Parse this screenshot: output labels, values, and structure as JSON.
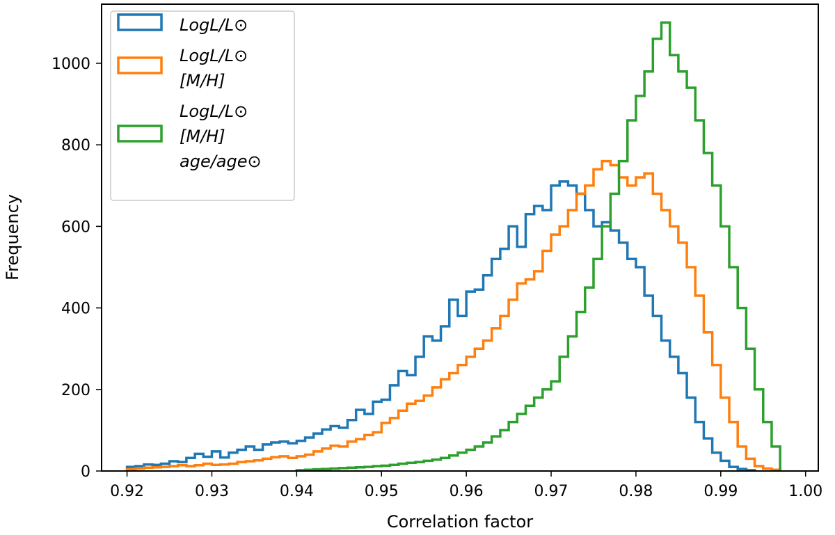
{
  "chart_data": {
    "type": "histogram",
    "xlabel": "Correlation factor",
    "ylabel": "Frequency",
    "xlim": [
      0.917,
      1.0015
    ],
    "ylim": [
      0,
      1145
    ],
    "x_ticks": [
      "0.92",
      "0.93",
      "0.94",
      "0.95",
      "0.96",
      "0.97",
      "0.98",
      "0.99",
      "1.00"
    ],
    "y_ticks": [
      "0",
      "200",
      "400",
      "600",
      "800",
      "1000"
    ],
    "legend_position": "upper-left",
    "series": [
      {
        "name_lines": [
          "LogL/L⊙"
        ],
        "color": "#1f77b4",
        "bin_edges": [
          0.92,
          0.921,
          0.922,
          0.923,
          0.924,
          0.925,
          0.926,
          0.927,
          0.928,
          0.929,
          0.93,
          0.931,
          0.932,
          0.933,
          0.934,
          0.935,
          0.936,
          0.937,
          0.938,
          0.939,
          0.94,
          0.941,
          0.942,
          0.943,
          0.944,
          0.945,
          0.946,
          0.947,
          0.948,
          0.949,
          0.95,
          0.951,
          0.952,
          0.953,
          0.954,
          0.955,
          0.956,
          0.957,
          0.958,
          0.959,
          0.96,
          0.961,
          0.962,
          0.963,
          0.964,
          0.965,
          0.966,
          0.967,
          0.968,
          0.969,
          0.97,
          0.971,
          0.972,
          0.973,
          0.974,
          0.975,
          0.976,
          0.977,
          0.978,
          0.979,
          0.98,
          0.981,
          0.982,
          0.983,
          0.984,
          0.985,
          0.986,
          0.987,
          0.988,
          0.989,
          0.99,
          0.991,
          0.992,
          0.993,
          0.994
        ],
        "counts": [
          10,
          12,
          16,
          15,
          18,
          24,
          22,
          32,
          42,
          35,
          48,
          33,
          45,
          52,
          60,
          52,
          65,
          70,
          72,
          68,
          74,
          82,
          92,
          102,
          110,
          106,
          125,
          150,
          140,
          170,
          175,
          210,
          245,
          235,
          280,
          330,
          320,
          355,
          420,
          380,
          440,
          445,
          480,
          520,
          545,
          600,
          550,
          630,
          650,
          640,
          700,
          710,
          700,
          680,
          640,
          600,
          610,
          590,
          560,
          520,
          500,
          430,
          380,
          320,
          280,
          240,
          180,
          120,
          80,
          45,
          25,
          10,
          5,
          2
        ]
      },
      {
        "name_lines": [
          "LogL/L⊙",
          "[M/H]"
        ],
        "color": "#ff7f0e",
        "bin_edges": [
          0.92,
          0.921,
          0.922,
          0.923,
          0.924,
          0.925,
          0.926,
          0.927,
          0.928,
          0.929,
          0.93,
          0.931,
          0.932,
          0.933,
          0.934,
          0.935,
          0.936,
          0.937,
          0.938,
          0.939,
          0.94,
          0.941,
          0.942,
          0.943,
          0.944,
          0.945,
          0.946,
          0.947,
          0.948,
          0.949,
          0.95,
          0.951,
          0.952,
          0.953,
          0.954,
          0.955,
          0.956,
          0.957,
          0.958,
          0.959,
          0.96,
          0.961,
          0.962,
          0.963,
          0.964,
          0.965,
          0.966,
          0.967,
          0.968,
          0.969,
          0.97,
          0.971,
          0.972,
          0.973,
          0.974,
          0.975,
          0.976,
          0.977,
          0.978,
          0.979,
          0.98,
          0.981,
          0.982,
          0.983,
          0.984,
          0.985,
          0.986,
          0.987,
          0.988,
          0.989,
          0.99,
          0.991,
          0.992,
          0.993,
          0.994,
          0.995,
          0.996,
          0.997
        ],
        "counts": [
          4,
          6,
          8,
          9,
          10,
          12,
          14,
          12,
          14,
          18,
          15,
          16,
          18,
          22,
          24,
          26,
          30,
          34,
          36,
          32,
          36,
          40,
          48,
          55,
          62,
          60,
          72,
          78,
          88,
          95,
          118,
          130,
          148,
          165,
          172,
          185,
          205,
          225,
          240,
          260,
          280,
          300,
          320,
          350,
          380,
          420,
          460,
          470,
          490,
          540,
          580,
          600,
          640,
          680,
          700,
          740,
          760,
          750,
          720,
          700,
          720,
          730,
          680,
          640,
          600,
          560,
          500,
          430,
          340,
          260,
          180,
          120,
          60,
          30,
          12,
          6,
          3
        ]
      },
      {
        "name_lines": [
          "LogL/L⊙",
          "[M/H]",
          "age/age⊙"
        ],
        "color": "#2ca02c",
        "bin_edges": [
          0.94,
          0.941,
          0.942,
          0.943,
          0.944,
          0.945,
          0.946,
          0.947,
          0.948,
          0.949,
          0.95,
          0.951,
          0.952,
          0.953,
          0.954,
          0.955,
          0.956,
          0.957,
          0.958,
          0.959,
          0.96,
          0.961,
          0.962,
          0.963,
          0.964,
          0.965,
          0.966,
          0.967,
          0.968,
          0.969,
          0.97,
          0.971,
          0.972,
          0.973,
          0.974,
          0.975,
          0.976,
          0.977,
          0.978,
          0.979,
          0.98,
          0.981,
          0.982,
          0.983,
          0.984,
          0.985,
          0.986,
          0.987,
          0.988,
          0.989,
          0.99,
          0.991,
          0.992,
          0.993,
          0.994,
          0.995,
          0.996,
          0.997
        ],
        "counts": [
          2,
          3,
          4,
          5,
          6,
          7,
          8,
          9,
          10,
          12,
          13,
          15,
          18,
          20,
          22,
          25,
          28,
          32,
          38,
          45,
          52,
          60,
          70,
          85,
          100,
          120,
          140,
          160,
          180,
          200,
          220,
          280,
          330,
          390,
          450,
          520,
          600,
          680,
          760,
          860,
          920,
          980,
          1060,
          1100,
          1020,
          980,
          940,
          860,
          780,
          700,
          600,
          500,
          400,
          300,
          200,
          120,
          60
        ]
      }
    ]
  }
}
